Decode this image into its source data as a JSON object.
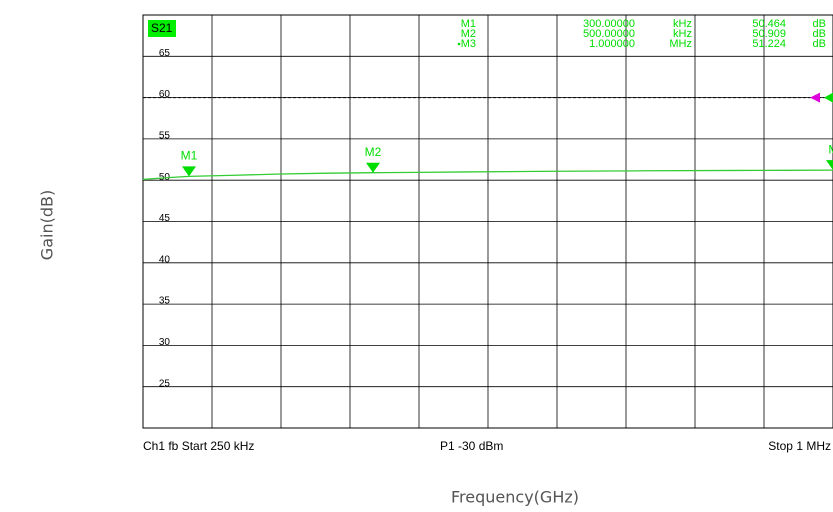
{
  "chart_data": {
    "type": "line",
    "title": "S21",
    "x_label": "Frequency(GHz)",
    "y_label": "Gain(dB)",
    "xlim": [
      250,
      1000
    ],
    "ylim": [
      20,
      70
    ],
    "yticks": [
      25,
      30,
      35,
      40,
      45,
      50,
      55,
      60,
      65
    ],
    "series": [
      {
        "name": "S21",
        "color": "#33cc33",
        "x": [
          250,
          275,
          300,
          350,
          400,
          450,
          500,
          550,
          600,
          700,
          800,
          900,
          950,
          1000
        ],
        "values": [
          50.1,
          50.3,
          50.464,
          50.6,
          50.75,
          50.85,
          50.909,
          50.95,
          51.0,
          51.08,
          51.14,
          51.18,
          51.2,
          51.224
        ]
      }
    ],
    "reference": 60,
    "reference_color": "#dd00dd",
    "markers": [
      {
        "name": "M1",
        "x": 300,
        "value": 50.464,
        "x_label": "300.00000",
        "x_unit": "kHz",
        "value_label": "50.464",
        "unit": "dB"
      },
      {
        "name": "M2",
        "x": 500,
        "value": 50.909,
        "x_label": "500.00000",
        "x_unit": "kHz",
        "value_label": "50.909",
        "unit": "dB"
      },
      {
        "name": "M3",
        "x": 1000,
        "value": 51.224,
        "x_label": "1.000000",
        "x_unit": "MHz",
        "value_label": "51.224",
        "unit": "dB"
      }
    ],
    "footer": {
      "start": "Ch1  fb  Start  250 kHz",
      "power": "P1   -30 dBm",
      "stop": "Stop  1 MHz"
    }
  }
}
